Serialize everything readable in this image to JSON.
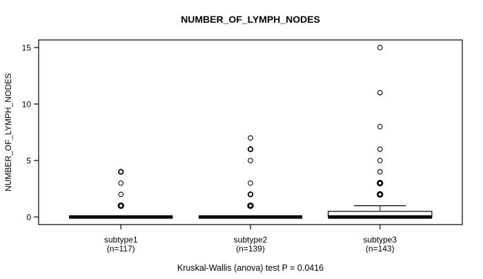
{
  "chart_data": {
    "type": "boxplot",
    "title": "NUMBER_OF_LYMPH_NODES",
    "ylabel": "NUMBER_OF_LYMPH_NODES",
    "xlabel": "",
    "annotation": "Kruskal-Wallis (anova) test P = 0.0416",
    "grid": false,
    "legend": false,
    "ylim": [
      0,
      15
    ],
    "yticks": [
      0,
      5,
      10,
      15
    ],
    "colors": {
      "stroke": "#000000",
      "box_fill": "#ffffff",
      "background": "#ffffff"
    },
    "groups": [
      {
        "label": "subtype1",
        "sublabel": "(n=117)",
        "n": 117,
        "whisker_low": 0,
        "q1": 0,
        "median": 0,
        "q3": 0,
        "whisker_high": 0,
        "outliers": [
          {
            "value": 4,
            "weight": "medium"
          },
          {
            "value": 3,
            "weight": "thin"
          },
          {
            "value": 2,
            "weight": "thin"
          },
          {
            "value": 1,
            "weight": "bold"
          }
        ]
      },
      {
        "label": "subtype2",
        "sublabel": "(n=139)",
        "n": 139,
        "whisker_low": 0,
        "q1": 0,
        "median": 0,
        "q3": 0,
        "whisker_high": 0,
        "outliers": [
          {
            "value": 7,
            "weight": "thin"
          },
          {
            "value": 6,
            "weight": "medium"
          },
          {
            "value": 5,
            "weight": "thin"
          },
          {
            "value": 3,
            "weight": "thin"
          },
          {
            "value": 2,
            "weight": "medium"
          },
          {
            "value": 1,
            "weight": "bold"
          }
        ]
      },
      {
        "label": "subtype3",
        "sublabel": "(n=143)",
        "n": 143,
        "whisker_low": 0,
        "q1": 0,
        "median": 0,
        "q3": 0.5,
        "whisker_high": 1,
        "outliers": [
          {
            "value": 15,
            "weight": "thin"
          },
          {
            "value": 11,
            "weight": "thin"
          },
          {
            "value": 8,
            "weight": "thin"
          },
          {
            "value": 6,
            "weight": "thin"
          },
          {
            "value": 5,
            "weight": "thin"
          },
          {
            "value": 4,
            "weight": "thin"
          },
          {
            "value": 3,
            "weight": "bold"
          },
          {
            "value": 2,
            "weight": "bold"
          }
        ]
      }
    ]
  }
}
